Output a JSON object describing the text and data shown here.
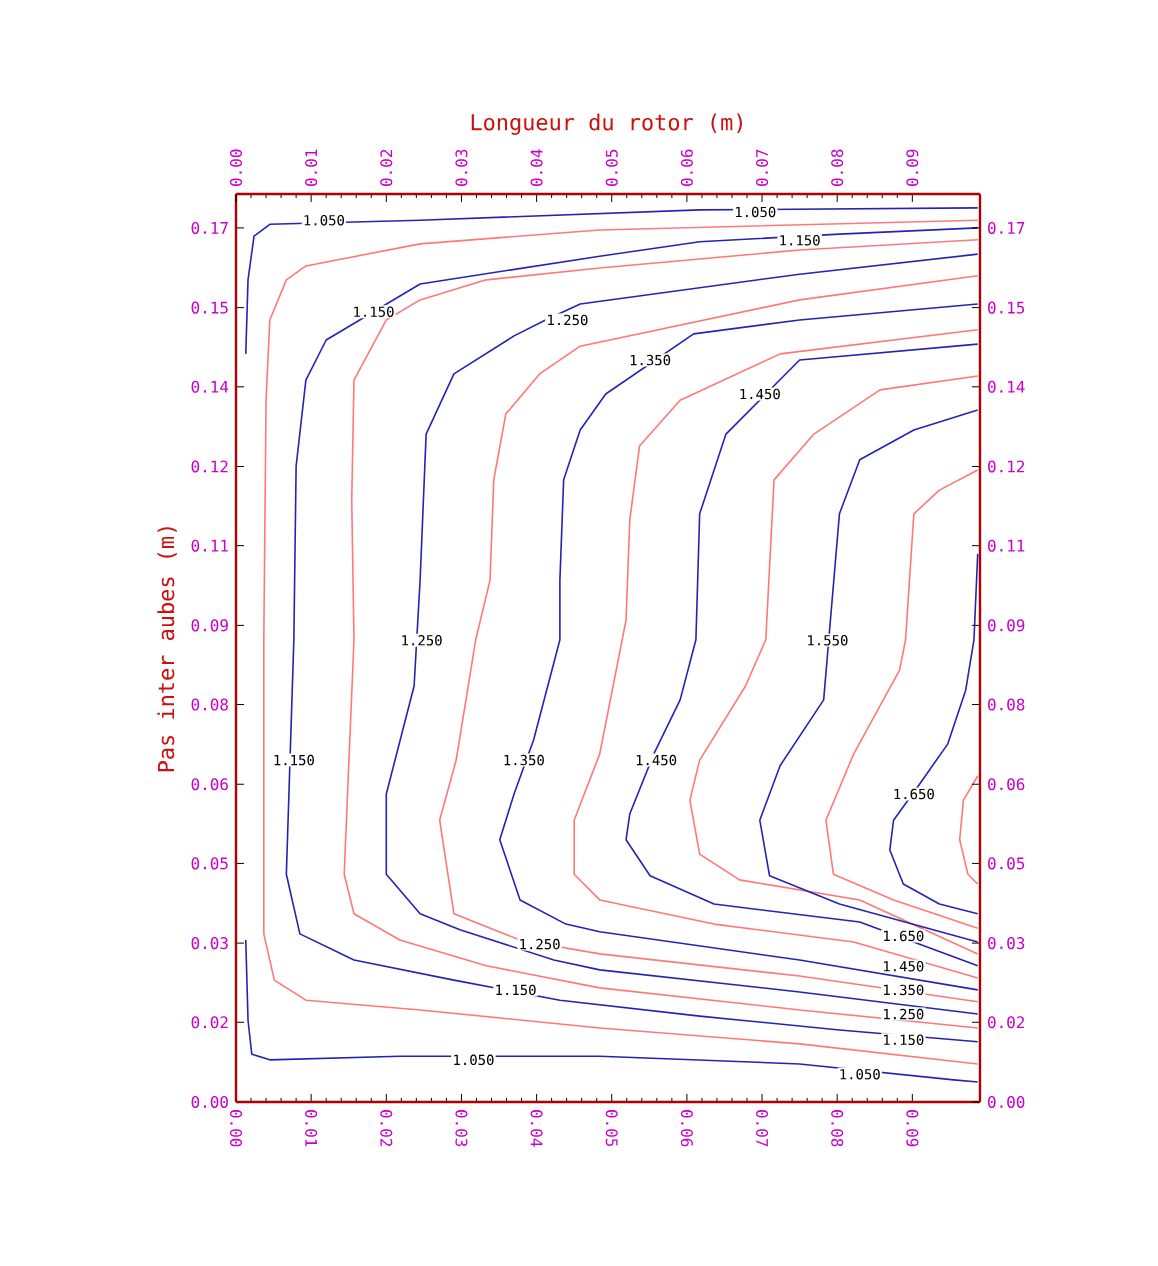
{
  "chart_data": {
    "type": "line",
    "x2label": "Longueur du rotor (m)",
    "ylabel": "Pas inter aubes (m)",
    "xlim": [
      0,
      0.099
    ],
    "ylim": [
      0,
      0.1766
    ],
    "x2lim": [
      0,
      0.099
    ],
    "y2lim": [
      0,
      0.1766
    ],
    "xticks": [
      {
        "value": 0,
        "label": "0.00"
      },
      {
        "value": 0.01,
        "label": "0.01"
      },
      {
        "value": 0.02,
        "label": "0.02"
      },
      {
        "value": 0.03,
        "label": "0.03"
      },
      {
        "value": 0.04,
        "label": "0.04"
      },
      {
        "value": 0.05,
        "label": "0.05"
      },
      {
        "value": 0.06,
        "label": "0.06"
      },
      {
        "value": 0.07,
        "label": "0.07"
      },
      {
        "value": 0.08,
        "label": "0.08"
      },
      {
        "value": 0.09,
        "label": "0.09"
      }
    ],
    "x2ticks": [
      {
        "value": 0,
        "label": "0.00"
      },
      {
        "value": 0.01,
        "label": "0.01"
      },
      {
        "value": 0.02,
        "label": "0.02"
      },
      {
        "value": 0.03,
        "label": "0.03"
      },
      {
        "value": 0.04,
        "label": "0.04"
      },
      {
        "value": 0.05,
        "label": "0.05"
      },
      {
        "value": 0.06,
        "label": "0.06"
      },
      {
        "value": 0.07,
        "label": "0.07"
      },
      {
        "value": 0.08,
        "label": "0.08"
      },
      {
        "value": 0.09,
        "label": "0.09"
      }
    ],
    "yticks": [
      {
        "value": 0,
        "label": "0.00"
      },
      {
        "value": 0.0155,
        "label": "0.02"
      },
      {
        "value": 0.0309,
        "label": "0.03"
      },
      {
        "value": 0.0464,
        "label": "0.05"
      },
      {
        "value": 0.0618,
        "label": "0.06"
      },
      {
        "value": 0.0773,
        "label": "0.08"
      },
      {
        "value": 0.0927,
        "label": "0.09"
      },
      {
        "value": 0.1082,
        "label": "0.11"
      },
      {
        "value": 0.1236,
        "label": "0.12"
      },
      {
        "value": 0.1391,
        "label": "0.14"
      },
      {
        "value": 0.1545,
        "label": "0.15"
      },
      {
        "value": 0.17,
        "label": "0.17"
      }
    ],
    "y2ticks": [
      {
        "value": 0,
        "label": "0.00"
      },
      {
        "value": 0.0155,
        "label": "0.02"
      },
      {
        "value": 0.0309,
        "label": "0.03"
      },
      {
        "value": 0.0464,
        "label": "0.05"
      },
      {
        "value": 0.0618,
        "label": "0.06"
      },
      {
        "value": 0.0773,
        "label": "0.08"
      },
      {
        "value": 0.0927,
        "label": "0.09"
      },
      {
        "value": 0.1082,
        "label": "0.11"
      },
      {
        "value": 0.1236,
        "label": "0.12"
      },
      {
        "value": 0.1391,
        "label": "0.14"
      },
      {
        "value": 0.1545,
        "label": "0.15"
      },
      {
        "value": 0.17,
        "label": "0.17"
      }
    ],
    "series": [
      {
        "color": "#2424b4",
        "x": [
          0.0987,
          0.0617,
          0.0245,
          0.0045,
          0.0024,
          0.0016,
          0.0013
        ],
        "values": [
          0.1739,
          0.1735,
          0.1715,
          0.1707,
          0.1684,
          0.1599,
          0.1455
        ]
      },
      {
        "color": "#2424b4",
        "x": [
          0.0013,
          0.0016,
          0.0021,
          0.0045,
          0.0218,
          0.0484,
          0.075,
          0.0955,
          0.0987
        ],
        "values": [
          0.0315,
          0.0159,
          0.0093,
          0.0082,
          0.0089,
          0.0089,
          0.0074,
          0.0043,
          0.0039
        ]
      },
      {
        "color": "#ff7878",
        "x": [
          0.0987,
          0.0484,
          0.0245,
          0.0093,
          0.0067,
          0.0045,
          0.004,
          0.0037,
          0.0037,
          0.0051,
          0.0093,
          0.0245,
          0.0484,
          0.075,
          0.0987
        ],
        "values": [
          0.1715,
          0.1696,
          0.1669,
          0.1626,
          0.1599,
          0.1521,
          0.1365,
          0.0899,
          0.0327,
          0.0237,
          0.0198,
          0.0179,
          0.0144,
          0.0113,
          0.0074
        ]
      },
      {
        "color": "#2424b4",
        "x": [
          0.0987,
          0.0803,
          0.0617,
          0.0484,
          0.0245,
          0.012,
          0.0093,
          0.008,
          0.0077,
          0.0067,
          0.0085,
          0.0157,
          0.029,
          0.0431,
          0.0617,
          0.0803,
          0.0987
        ],
        "values": [
          0.17,
          0.1688,
          0.1673,
          0.1645,
          0.1591,
          0.1482,
          0.1404,
          0.1237,
          0.0899,
          0.0443,
          0.0327,
          0.0276,
          0.0237,
          0.0198,
          0.0167,
          0.014,
          0.0117
        ]
      },
      {
        "color": "#ff7878",
        "x": [
          0.0987,
          0.075,
          0.0484,
          0.0333,
          0.0245,
          0.02,
          0.0157,
          0.0154,
          0.0157,
          0.0144,
          0.0157,
          0.0218,
          0.0333,
          0.0484,
          0.075,
          0.0987
        ],
        "values": [
          0.1677,
          0.1657,
          0.1622,
          0.1599,
          0.156,
          0.1521,
          0.1404,
          0.1171,
          0.0899,
          0.0443,
          0.0366,
          0.0315,
          0.0265,
          0.0222,
          0.0179,
          0.0144
        ]
      },
      {
        "color": "#2424b4",
        "x": [
          0.0987,
          0.075,
          0.0458,
          0.0412,
          0.037,
          0.029,
          0.0253,
          0.0245,
          0.0237,
          0.02,
          0.02,
          0.0245,
          0.0298,
          0.0423,
          0.0484,
          0.075,
          0.0987
        ],
        "values": [
          0.1649,
          0.161,
          0.1552,
          0.1521,
          0.149,
          0.1416,
          0.1299,
          0.1015,
          0.0809,
          0.0599,
          0.0443,
          0.0366,
          0.0335,
          0.0276,
          0.0257,
          0.0214,
          0.0171
        ]
      },
      {
        "color": "#ff7878",
        "x": [
          0.0987,
          0.075,
          0.0458,
          0.0404,
          0.0359,
          0.0343,
          0.0338,
          0.0319,
          0.0293,
          0.0271,
          0.029,
          0.0378,
          0.0484,
          0.075,
          0.0987
        ],
        "values": [
          0.1607,
          0.156,
          0.147,
          0.1416,
          0.1338,
          0.121,
          0.1015,
          0.0899,
          0.0665,
          0.0548,
          0.0366,
          0.0315,
          0.0288,
          0.0245,
          0.0195
        ]
      },
      {
        "color": "#2424b4",
        "x": [
          0.0987,
          0.075,
          0.0609,
          0.0492,
          0.0458,
          0.0436,
          0.0431,
          0.0431,
          0.0396,
          0.037,
          0.0351,
          0.0378,
          0.0439,
          0.0484,
          0.075,
          0.0987
        ],
        "values": [
          0.1552,
          0.1521,
          0.1494,
          0.1377,
          0.1307,
          0.121,
          0.1015,
          0.0899,
          0.0704,
          0.0599,
          0.051,
          0.0393,
          0.0346,
          0.0331,
          0.0276,
          0.0218
        ]
      },
      {
        "color": "#ff7878",
        "x": [
          0.0987,
          0.0724,
          0.0591,
          0.0537,
          0.0524,
          0.0519,
          0.0484,
          0.045,
          0.045,
          0.0484,
          0.0636,
          0.0822,
          0.0987
        ],
        "values": [
          0.1502,
          0.1455,
          0.1365,
          0.1276,
          0.1132,
          0.0937,
          0.0677,
          0.0548,
          0.0443,
          0.0393,
          0.0346,
          0.0311,
          0.0241
        ]
      },
      {
        "color": "#2424b4",
        "x": [
          0.0987,
          0.075,
          0.0652,
          0.0617,
          0.0612,
          0.0591,
          0.0556,
          0.0524,
          0.0519,
          0.0551,
          0.0636,
          0.083,
          0.0987
        ],
        "values": [
          0.1474,
          0.1443,
          0.1299,
          0.1144,
          0.0899,
          0.0782,
          0.0677,
          0.056,
          0.051,
          0.044,
          0.0385,
          0.035,
          0.0265
        ]
      },
      {
        "color": "#ff7878",
        "x": [
          0.0987,
          0.0857,
          0.0769,
          0.0716,
          0.0705,
          0.0678,
          0.0617,
          0.0604,
          0.0617,
          0.067,
          0.083,
          0.0987
        ],
        "values": [
          0.1412,
          0.1385,
          0.1299,
          0.121,
          0.0899,
          0.0809,
          0.0665,
          0.0587,
          0.0482,
          0.0432,
          0.0393,
          0.0288
        ]
      },
      {
        "color": "#2424b4",
        "x": [
          0.0987,
          0.0902,
          0.083,
          0.0803,
          0.0782,
          0.0724,
          0.0697,
          0.071,
          0.0803,
          0.0987
        ],
        "values": [
          0.1346,
          0.1307,
          0.1249,
          0.1144,
          0.0782,
          0.0654,
          0.0548,
          0.044,
          0.0385,
          0.0311
        ]
      },
      {
        "color": "#ff7878",
        "x": [
          0.0987,
          0.0936,
          0.0902,
          0.0891,
          0.0883,
          0.0822,
          0.0785,
          0.0795,
          0.0875,
          0.0987
        ],
        "values": [
          0.1229,
          0.119,
          0.1144,
          0.0899,
          0.084,
          0.0677,
          0.0548,
          0.0443,
          0.0393,
          0.0338
        ]
      },
      {
        "color": "#2424b4",
        "x": [
          0.0987,
          0.0982,
          0.0971,
          0.0947,
          0.091,
          0.0875,
          0.087,
          0.0888,
          0.0936,
          0.0987
        ],
        "values": [
          0.1066,
          0.0899,
          0.0801,
          0.0696,
          0.0619,
          0.0548,
          0.049,
          0.0424,
          0.0385,
          0.0366
        ]
      },
      {
        "color": "#ff7878",
        "x": [
          0.0987,
          0.0968,
          0.0963,
          0.0974,
          0.0987
        ],
        "values": [
          0.0634,
          0.0587,
          0.051,
          0.0443,
          0.0424
        ]
      }
    ],
    "annotations": [
      {
        "text": "1.050",
        "x": 0.0117,
        "y": 0.1715
      },
      {
        "text": "1.050",
        "x": 0.0691,
        "y": 0.1731
      },
      {
        "text": "1.150",
        "x": 0.075,
        "y": 0.1676
      },
      {
        "text": "1.150",
        "x": 0.0183,
        "y": 0.1537
      },
      {
        "text": "1.250",
        "x": 0.0441,
        "y": 0.1521
      },
      {
        "text": "1.350",
        "x": 0.0551,
        "y": 0.1443
      },
      {
        "text": "1.450",
        "x": 0.0697,
        "y": 0.1377
      },
      {
        "text": "1.250",
        "x": 0.0247,
        "y": 0.0898
      },
      {
        "text": "1.150",
        "x": 0.0077,
        "y": 0.0665
      },
      {
        "text": "1.350",
        "x": 0.0383,
        "y": 0.0665
      },
      {
        "text": "1.450",
        "x": 0.0559,
        "y": 0.0665
      },
      {
        "text": "1.550",
        "x": 0.0787,
        "y": 0.0898
      },
      {
        "text": "1.650",
        "x": 0.0902,
        "y": 0.0599
      },
      {
        "text": "1.250",
        "x": 0.0404,
        "y": 0.0307
      },
      {
        "text": "1.150",
        "x": 0.0372,
        "y": 0.0218
      },
      {
        "text": "1.050",
        "x": 0.0316,
        "y": 0.0082
      },
      {
        "text": "1.650",
        "x": 0.0888,
        "y": 0.0323
      },
      {
        "text": "1.450",
        "x": 0.0888,
        "y": 0.0264
      },
      {
        "text": "1.350",
        "x": 0.0888,
        "y": 0.0218
      },
      {
        "text": "1.250",
        "x": 0.0888,
        "y": 0.0171
      },
      {
        "text": "1.150",
        "x": 0.0888,
        "y": 0.0121
      },
      {
        "text": "1.050",
        "x": 0.083,
        "y": 0.0054
      }
    ]
  }
}
